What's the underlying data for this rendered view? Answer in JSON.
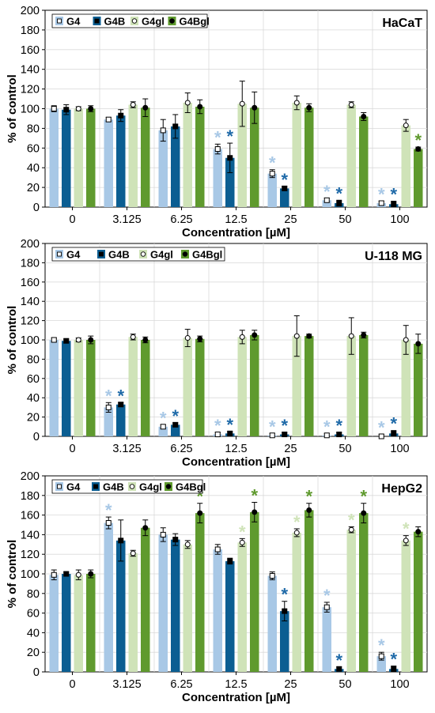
{
  "palette": {
    "G4": "#a8c8e6",
    "G4B": "#0b5e92",
    "G4gl": "#cfe3b8",
    "G4Bgl": "#5f9a2e",
    "star_G4": "#a8c8e6",
    "star_G4B": "#1f6aa8",
    "star_G4gl": "#cfe3b8",
    "star_G4Bgl": "#5f9a2e"
  },
  "shared": {
    "categories": [
      "0",
      "3.125",
      "6.25",
      "12.5",
      "25",
      "50",
      "100"
    ],
    "xlabel": "Concentration [µM]",
    "ylabel": "% of control",
    "yticks": [
      "0",
      "20",
      "40",
      "60",
      "80",
      "100",
      "120",
      "140",
      "160",
      "180",
      "200"
    ],
    "legend": [
      "G4",
      "G4B",
      "G4gl",
      "G4Bgl"
    ],
    "star_symbol": "*"
  },
  "chart_data": [
    {
      "type": "bar",
      "title": "HaCaT",
      "xlabel": "Concentration [µM]",
      "ylabel": "% of control",
      "ylim": [
        0,
        200
      ],
      "grid": true,
      "legend_position": "top-left",
      "categories": [
        "0",
        "3.125",
        "6.25",
        "12.5",
        "25",
        "50",
        "100"
      ],
      "series": [
        {
          "name": "G4",
          "values": [
            100,
            89,
            78,
            59,
            34,
            7,
            4
          ],
          "errors": [
            3,
            2,
            11,
            5,
            4,
            2,
            2
          ],
          "significant": [
            false,
            false,
            false,
            true,
            true,
            true,
            true
          ]
        },
        {
          "name": "G4B",
          "values": [
            99,
            93,
            82,
            50,
            19,
            4,
            3
          ],
          "errors": [
            5,
            6,
            12,
            15,
            2,
            3,
            3
          ],
          "significant": [
            false,
            false,
            false,
            true,
            true,
            true,
            true
          ]
        },
        {
          "name": "G4gl",
          "values": [
            100,
            104,
            106,
            105,
            106,
            104,
            83
          ],
          "errors": [
            2,
            3,
            10,
            23,
            7,
            3,
            6
          ],
          "significant": [
            false,
            false,
            false,
            false,
            false,
            false,
            false
          ]
        },
        {
          "name": "G4Bgl",
          "values": [
            100,
            101,
            102,
            101,
            101,
            92,
            59
          ],
          "errors": [
            3,
            9,
            7,
            16,
            4,
            4,
            2
          ],
          "significant": [
            false,
            false,
            false,
            false,
            false,
            false,
            true
          ]
        }
      ]
    },
    {
      "type": "bar",
      "title": "U-118 MG",
      "xlabel": "Concentration [µM]",
      "ylabel": "% of control",
      "ylim": [
        0,
        200
      ],
      "grid": true,
      "legend_position": "top-left",
      "categories": [
        "0",
        "3.125",
        "6.25",
        "12.5",
        "25",
        "50",
        "100"
      ],
      "series": [
        {
          "name": "G4",
          "values": [
            100,
            30,
            10,
            2,
            1,
            1,
            0
          ],
          "errors": [
            2,
            5,
            2,
            2,
            2,
            2,
            2
          ],
          "significant": [
            false,
            true,
            true,
            true,
            true,
            true,
            true
          ]
        },
        {
          "name": "G4B",
          "values": [
            99,
            33,
            12,
            3,
            2,
            2,
            3
          ],
          "errors": [
            2,
            2,
            2,
            2,
            2,
            2,
            3
          ],
          "significant": [
            false,
            true,
            true,
            true,
            true,
            true,
            true
          ]
        },
        {
          "name": "G4gl",
          "values": [
            100,
            103,
            102,
            103,
            104,
            104,
            100
          ],
          "errors": [
            2,
            3,
            9,
            7,
            21,
            19,
            15
          ],
          "significant": [
            false,
            false,
            false,
            false,
            false,
            false,
            false
          ]
        },
        {
          "name": "G4Bgl",
          "values": [
            100,
            100,
            101,
            105,
            104,
            105,
            96
          ],
          "errors": [
            4,
            3,
            3,
            5,
            2,
            3,
            10
          ],
          "significant": [
            false,
            false,
            false,
            false,
            false,
            false,
            false
          ]
        }
      ]
    },
    {
      "type": "bar",
      "title": "HepG2",
      "xlabel": "Concentration [µM]",
      "ylabel": "% of control",
      "ylim": [
        0,
        200
      ],
      "grid": true,
      "legend_position": "top-left",
      "categories": [
        "0",
        "3.125",
        "6.25",
        "12.5",
        "25",
        "50",
        "100"
      ],
      "series": [
        {
          "name": "G4",
          "values": [
            99,
            152,
            140,
            125,
            98,
            66,
            16
          ],
          "errors": [
            5,
            6,
            7,
            5,
            4,
            5,
            4
          ],
          "significant": [
            false,
            true,
            false,
            false,
            false,
            true,
            true
          ]
        },
        {
          "name": "G4B",
          "values": [
            100,
            134,
            135,
            113,
            62,
            3,
            3
          ],
          "errors": [
            2,
            21,
            6,
            3,
            10,
            2,
            3
          ],
          "significant": [
            false,
            false,
            false,
            false,
            true,
            true,
            true
          ]
        },
        {
          "name": "G4gl",
          "values": [
            99,
            121,
            130,
            132,
            142,
            145,
            134
          ],
          "errors": [
            5,
            3,
            4,
            4,
            4,
            3,
            5
          ],
          "significant": [
            false,
            false,
            false,
            true,
            true,
            true,
            true
          ]
        },
        {
          "name": "G4Bgl",
          "values": [
            100,
            147,
            162,
            163,
            165,
            162,
            143
          ],
          "errors": [
            4,
            8,
            10,
            10,
            7,
            10,
            5
          ],
          "significant": [
            false,
            false,
            true,
            true,
            true,
            true,
            false
          ]
        }
      ]
    }
  ]
}
